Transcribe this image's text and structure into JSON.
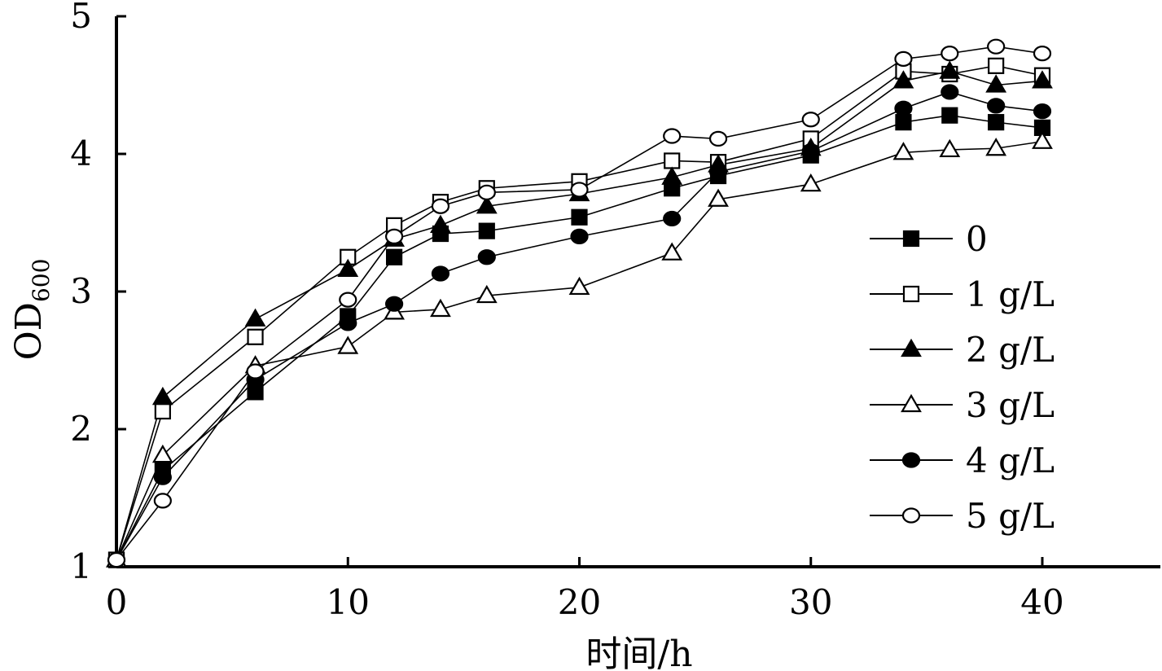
{
  "chart_data": {
    "type": "line",
    "title": "",
    "xlabel": "时间/h",
    "ylabel_main": "OD",
    "ylabel_sub": "600",
    "xlim": [
      0,
      45
    ],
    "ylim": [
      1,
      5
    ],
    "xticks": [
      0,
      10,
      20,
      30,
      40
    ],
    "yticks": [
      1,
      2,
      3,
      4,
      5
    ],
    "grid": false,
    "legend_position": "right",
    "series": [
      {
        "name": "0",
        "marker": "square",
        "fill": "filled",
        "x": [
          0,
          2,
          6,
          10,
          12,
          14,
          16,
          20,
          24,
          26,
          30,
          34,
          36,
          38,
          40
        ],
        "y": [
          1.05,
          1.7,
          2.27,
          2.82,
          3.25,
          3.42,
          3.44,
          3.54,
          3.75,
          3.84,
          3.99,
          4.23,
          4.28,
          4.23,
          4.19
        ]
      },
      {
        "name": "1 g/L",
        "marker": "square",
        "fill": "open",
        "x": [
          0,
          2,
          6,
          10,
          12,
          14,
          16,
          20,
          24,
          26,
          30,
          34,
          36,
          38,
          40
        ],
        "y": [
          1.05,
          2.13,
          2.67,
          3.25,
          3.48,
          3.65,
          3.75,
          3.8,
          3.95,
          3.94,
          4.11,
          4.6,
          4.58,
          4.64,
          4.57
        ]
      },
      {
        "name": "2 g/L",
        "marker": "triangle",
        "fill": "filled",
        "x": [
          0,
          2,
          6,
          10,
          12,
          14,
          16,
          20,
          24,
          26,
          30,
          34,
          36,
          38,
          40
        ],
        "y": [
          1.05,
          2.23,
          2.8,
          3.16,
          3.38,
          3.48,
          3.62,
          3.71,
          3.83,
          3.92,
          4.04,
          4.53,
          4.6,
          4.5,
          4.53
        ]
      },
      {
        "name": "3 g/L",
        "marker": "triangle",
        "fill": "open",
        "x": [
          0,
          2,
          6,
          10,
          12,
          14,
          16,
          20,
          24,
          26,
          30,
          34,
          36,
          38,
          40
        ],
        "y": [
          1.05,
          1.81,
          2.46,
          2.6,
          2.85,
          2.87,
          2.97,
          3.03,
          3.28,
          3.67,
          3.78,
          4.01,
          4.03,
          4.04,
          4.09
        ]
      },
      {
        "name": "4 g/L",
        "marker": "circle",
        "fill": "filled",
        "x": [
          0,
          2,
          6,
          10,
          12,
          14,
          16,
          20,
          24,
          26,
          30,
          34,
          36,
          38,
          40
        ],
        "y": [
          1.05,
          1.65,
          2.36,
          2.77,
          2.91,
          3.13,
          3.25,
          3.4,
          3.53,
          3.87,
          4.02,
          4.33,
          4.45,
          4.35,
          4.31
        ]
      },
      {
        "name": "5 g/L",
        "marker": "circle",
        "fill": "open",
        "x": [
          0,
          2,
          6,
          10,
          12,
          14,
          16,
          20,
          24,
          26,
          30,
          34,
          36,
          38,
          40
        ],
        "y": [
          1.05,
          1.48,
          2.42,
          2.94,
          3.4,
          3.62,
          3.72,
          3.74,
          4.13,
          4.11,
          4.25,
          4.69,
          4.73,
          4.78,
          4.73
        ]
      }
    ]
  }
}
